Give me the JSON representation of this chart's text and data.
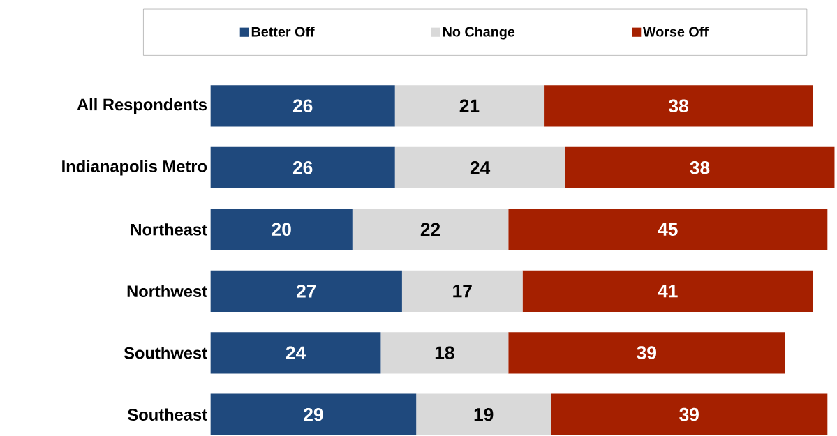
{
  "chart_data": {
    "type": "bar",
    "orientation": "horizontal",
    "stacked": true,
    "data_labels": true,
    "legend": "top",
    "categories": [
      "All Respondents",
      "Indianapolis Metro",
      "Northeast",
      "Northwest",
      "Southwest",
      "Southeast"
    ],
    "series": [
      {
        "name": "Better Off",
        "color": "#1f497d",
        "values": [
          26,
          26,
          20,
          27,
          24,
          29
        ]
      },
      {
        "name": "No Change",
        "color": "#d9d9d9",
        "values": [
          21,
          24,
          22,
          17,
          18,
          19
        ]
      },
      {
        "name": "Worse Off",
        "color": "#a52000",
        "values": [
          38,
          38,
          45,
          41,
          39,
          39
        ]
      }
    ]
  }
}
